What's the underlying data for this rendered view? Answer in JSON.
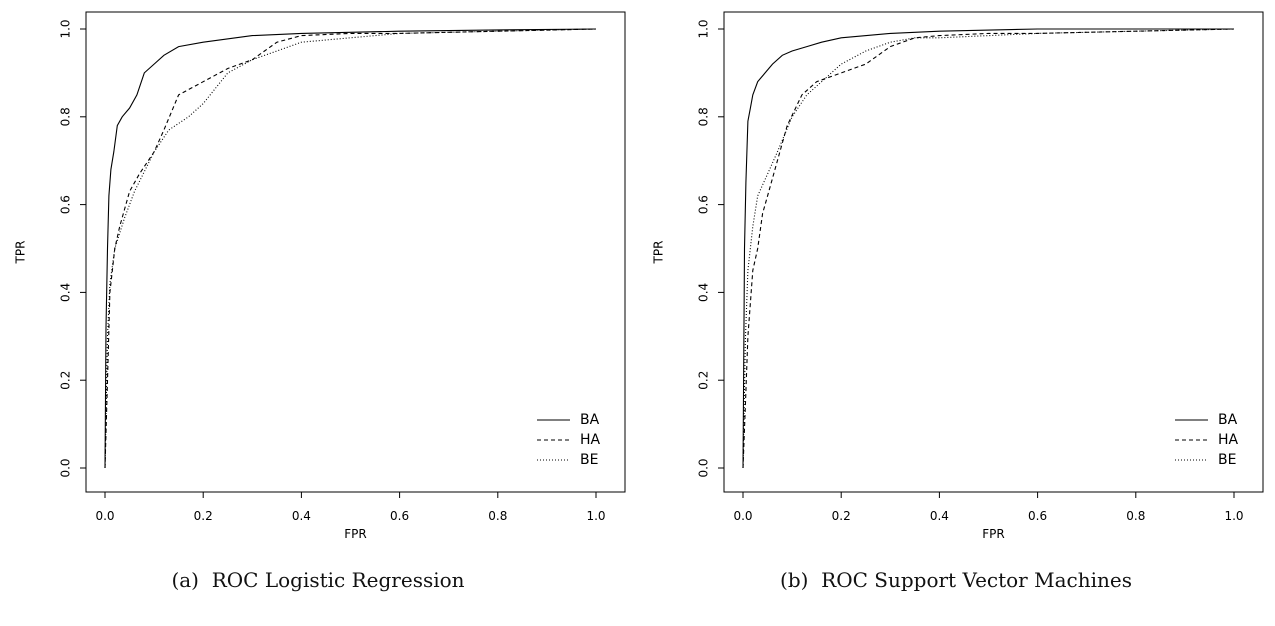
{
  "chart_data": [
    {
      "type": "line",
      "caption_tag": "(a)",
      "caption": "ROC Logistic Regression",
      "xlabel": "FPR",
      "ylabel": "TPR",
      "xlim": [
        0,
        1
      ],
      "ylim": [
        0,
        1
      ],
      "xticks": [
        "0.0",
        "0.2",
        "0.4",
        "0.6",
        "0.8",
        "1.0"
      ],
      "yticks": [
        "0.0",
        "0.2",
        "0.4",
        "0.6",
        "0.8",
        "1.0"
      ],
      "legend_position": "bottom-right",
      "series": [
        {
          "name": "BA",
          "style": "solid",
          "x": [
            0,
            0.002,
            0.005,
            0.008,
            0.012,
            0.018,
            0.025,
            0.035,
            0.05,
            0.065,
            0.08,
            0.1,
            0.12,
            0.15,
            0.2,
            0.3,
            0.4,
            0.6,
            0.8,
            1.0
          ],
          "y": [
            0,
            0.32,
            0.5,
            0.62,
            0.68,
            0.72,
            0.78,
            0.8,
            0.82,
            0.85,
            0.9,
            0.92,
            0.94,
            0.96,
            0.97,
            0.985,
            0.99,
            0.995,
            0.998,
            1.0
          ]
        },
        {
          "name": "HA",
          "style": "dashed",
          "x": [
            0,
            0.005,
            0.01,
            0.02,
            0.03,
            0.05,
            0.07,
            0.1,
            0.12,
            0.15,
            0.2,
            0.25,
            0.3,
            0.35,
            0.4,
            0.5,
            0.6,
            0.8,
            1.0
          ],
          "y": [
            0,
            0.2,
            0.4,
            0.5,
            0.55,
            0.63,
            0.67,
            0.72,
            0.77,
            0.85,
            0.88,
            0.91,
            0.93,
            0.97,
            0.985,
            0.99,
            0.99,
            0.995,
            1.0
          ]
        },
        {
          "name": "BE",
          "style": "dotted",
          "x": [
            0,
            0.005,
            0.01,
            0.02,
            0.04,
            0.06,
            0.1,
            0.13,
            0.17,
            0.2,
            0.25,
            0.3,
            0.35,
            0.4,
            0.5,
            0.6,
            0.8,
            1.0
          ],
          "y": [
            0,
            0.3,
            0.42,
            0.5,
            0.57,
            0.63,
            0.72,
            0.77,
            0.8,
            0.83,
            0.9,
            0.93,
            0.95,
            0.97,
            0.98,
            0.99,
            0.995,
            1.0
          ]
        }
      ]
    },
    {
      "type": "line",
      "caption_tag": "(b)",
      "caption": "ROC Support Vector Machines",
      "xlabel": "FPR",
      "ylabel": "TPR",
      "xlim": [
        0,
        1
      ],
      "ylim": [
        0,
        1
      ],
      "xticks": [
        "0.0",
        "0.2",
        "0.4",
        "0.6",
        "0.8",
        "1.0"
      ],
      "yticks": [
        "0.0",
        "0.2",
        "0.4",
        "0.6",
        "0.8",
        "1.0"
      ],
      "legend_position": "bottom-right",
      "series": [
        {
          "name": "BA",
          "style": "solid",
          "x": [
            0,
            0.003,
            0.006,
            0.01,
            0.015,
            0.02,
            0.03,
            0.045,
            0.06,
            0.08,
            0.1,
            0.13,
            0.16,
            0.2,
            0.3,
            0.4,
            0.6,
            0.8,
            1.0
          ],
          "y": [
            0,
            0.5,
            0.65,
            0.79,
            0.82,
            0.85,
            0.88,
            0.9,
            0.92,
            0.94,
            0.95,
            0.96,
            0.97,
            0.98,
            0.99,
            0.995,
            1.0,
            1.0,
            1.0
          ]
        },
        {
          "name": "HA",
          "style": "dashed",
          "x": [
            0,
            0.005,
            0.01,
            0.02,
            0.03,
            0.04,
            0.05,
            0.07,
            0.09,
            0.12,
            0.15,
            0.2,
            0.25,
            0.3,
            0.35,
            0.4,
            0.5,
            0.6,
            0.8,
            1.0
          ],
          "y": [
            0,
            0.15,
            0.3,
            0.45,
            0.5,
            0.58,
            0.62,
            0.7,
            0.78,
            0.85,
            0.88,
            0.9,
            0.92,
            0.96,
            0.98,
            0.985,
            0.99,
            0.99,
            0.995,
            1.0
          ]
        },
        {
          "name": "BE",
          "style": "dotted",
          "x": [
            0,
            0.005,
            0.01,
            0.02,
            0.03,
            0.05,
            0.07,
            0.1,
            0.13,
            0.16,
            0.2,
            0.25,
            0.3,
            0.35,
            0.4,
            0.5,
            0.6,
            0.8,
            1.0
          ],
          "y": [
            0,
            0.3,
            0.45,
            0.55,
            0.62,
            0.67,
            0.72,
            0.8,
            0.85,
            0.88,
            0.92,
            0.95,
            0.97,
            0.98,
            0.98,
            0.985,
            0.99,
            0.995,
            1.0
          ]
        }
      ]
    }
  ]
}
